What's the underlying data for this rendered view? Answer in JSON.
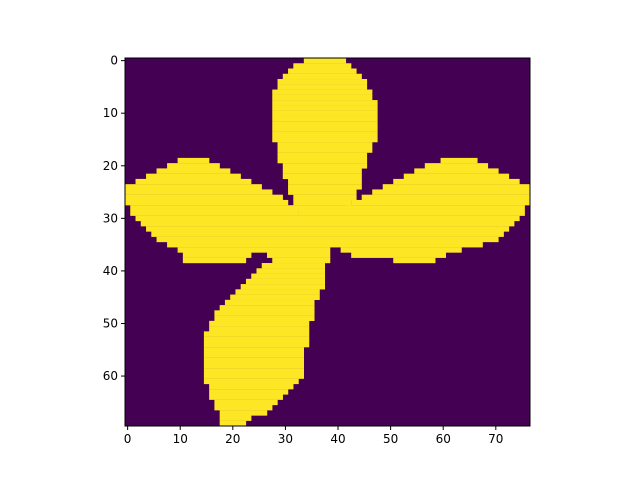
{
  "chart_data": {
    "type": "heatmap",
    "title": "",
    "xlabel": "",
    "ylabel": "",
    "xlim": [
      -0.5,
      76.5
    ],
    "ylim": [
      69.5,
      -0.5
    ],
    "grid": false,
    "colormap": "viridis",
    "colors": {
      "low": "#440154",
      "high": "#fde725"
    },
    "values_range": [
      0,
      1
    ],
    "grid_size": {
      "cols": 77,
      "rows": 70
    },
    "x_ticks": [
      0,
      10,
      20,
      30,
      40,
      50,
      60,
      70
    ],
    "y_ticks": [
      0,
      10,
      20,
      30,
      40,
      50,
      60
    ],
    "x_tick_labels": [
      "0",
      "10",
      "20",
      "30",
      "40",
      "50",
      "60",
      "70"
    ],
    "y_tick_labels": [
      "0",
      "10",
      "20",
      "30",
      "40",
      "50",
      "60"
    ],
    "high_value_runs_by_row": [
      [
        [
          34,
          41
        ]
      ],
      [
        [
          32,
          42
        ]
      ],
      [
        [
          31,
          43
        ]
      ],
      [
        [
          30,
          44
        ]
      ],
      [
        [
          29,
          45
        ]
      ],
      [
        [
          29,
          45
        ]
      ],
      [
        [
          28,
          46
        ]
      ],
      [
        [
          28,
          46
        ]
      ],
      [
        [
          28,
          47
        ]
      ],
      [
        [
          28,
          47
        ]
      ],
      [
        [
          28,
          47
        ]
      ],
      [
        [
          28,
          47
        ]
      ],
      [
        [
          28,
          47
        ]
      ],
      [
        [
          28,
          47
        ]
      ],
      [
        [
          28,
          47
        ]
      ],
      [
        [
          28,
          47
        ]
      ],
      [
        [
          29,
          46
        ]
      ],
      [
        [
          29,
          46
        ]
      ],
      [
        [
          29,
          45
        ]
      ],
      [
        [
          10,
          15
        ],
        [
          29,
          45
        ],
        [
          60,
          66
        ]
      ],
      [
        [
          8,
          17
        ],
        [
          30,
          45
        ],
        [
          57,
          68
        ]
      ],
      [
        [
          6,
          19
        ],
        [
          30,
          44
        ],
        [
          55,
          70
        ]
      ],
      [
        [
          4,
          21
        ],
        [
          30,
          44
        ],
        [
          53,
          72
        ]
      ],
      [
        [
          2,
          23
        ],
        [
          31,
          44
        ],
        [
          51,
          74
        ]
      ],
      [
        [
          0,
          25
        ],
        [
          31,
          44
        ],
        [
          49,
          76
        ]
      ],
      [
        [
          0,
          27
        ],
        [
          31,
          43
        ],
        [
          47,
          76
        ]
      ],
      [
        [
          0,
          29
        ],
        [
          32,
          43
        ],
        [
          45,
          76
        ]
      ],
      [
        [
          0,
          30
        ],
        [
          32,
          42
        ],
        [
          43,
          76
        ]
      ],
      [
        [
          1,
          31
        ],
        [
          32,
          42
        ],
        [
          42,
          75
        ]
      ],
      [
        [
          1,
          32
        ],
        [
          33,
          41
        ],
        [
          42,
          75
        ]
      ],
      [
        [
          2,
          74
        ]
      ],
      [
        [
          3,
          73
        ]
      ],
      [
        [
          4,
          72
        ]
      ],
      [
        [
          5,
          71
        ]
      ],
      [
        [
          6,
          70
        ]
      ],
      [
        [
          8,
          67
        ]
      ],
      [
        [
          10,
          38
        ],
        [
          41,
          63
        ]
      ],
      [
        [
          11,
          23
        ],
        [
          27,
          38
        ],
        [
          43,
          60
        ]
      ],
      [
        [
          11,
          22
        ],
        [
          28,
          38
        ],
        [
          51,
          58
        ]
      ],
      [
        [
          26,
          37
        ]
      ],
      [
        [
          25,
          37
        ]
      ],
      [
        [
          24,
          37
        ]
      ],
      [
        [
          23,
          37
        ]
      ],
      [
        [
          22,
          37
        ]
      ],
      [
        [
          21,
          36
        ]
      ],
      [
        [
          20,
          36
        ]
      ],
      [
        [
          19,
          35
        ]
      ],
      [
        [
          18,
          35
        ]
      ],
      [
        [
          17,
          35
        ]
      ],
      [
        [
          17,
          35
        ]
      ],
      [
        [
          16,
          34
        ]
      ],
      [
        [
          16,
          34
        ]
      ],
      [
        [
          15,
          34
        ]
      ],
      [
        [
          15,
          34
        ]
      ],
      [
        [
          15,
          34
        ]
      ],
      [
        [
          15,
          33
        ]
      ],
      [
        [
          15,
          33
        ]
      ],
      [
        [
          15,
          33
        ]
      ],
      [
        [
          15,
          33
        ]
      ],
      [
        [
          15,
          33
        ]
      ],
      [
        [
          15,
          33
        ]
      ],
      [
        [
          15,
          32
        ]
      ],
      [
        [
          16,
          31
        ]
      ],
      [
        [
          16,
          30
        ]
      ],
      [
        [
          16,
          29
        ]
      ],
      [
        [
          17,
          28
        ]
      ],
      [
        [
          17,
          27
        ]
      ],
      [
        [
          18,
          26
        ]
      ],
      [
        [
          18,
          23
        ]
      ],
      [
        [
          18,
          22
        ]
      ]
    ]
  }
}
